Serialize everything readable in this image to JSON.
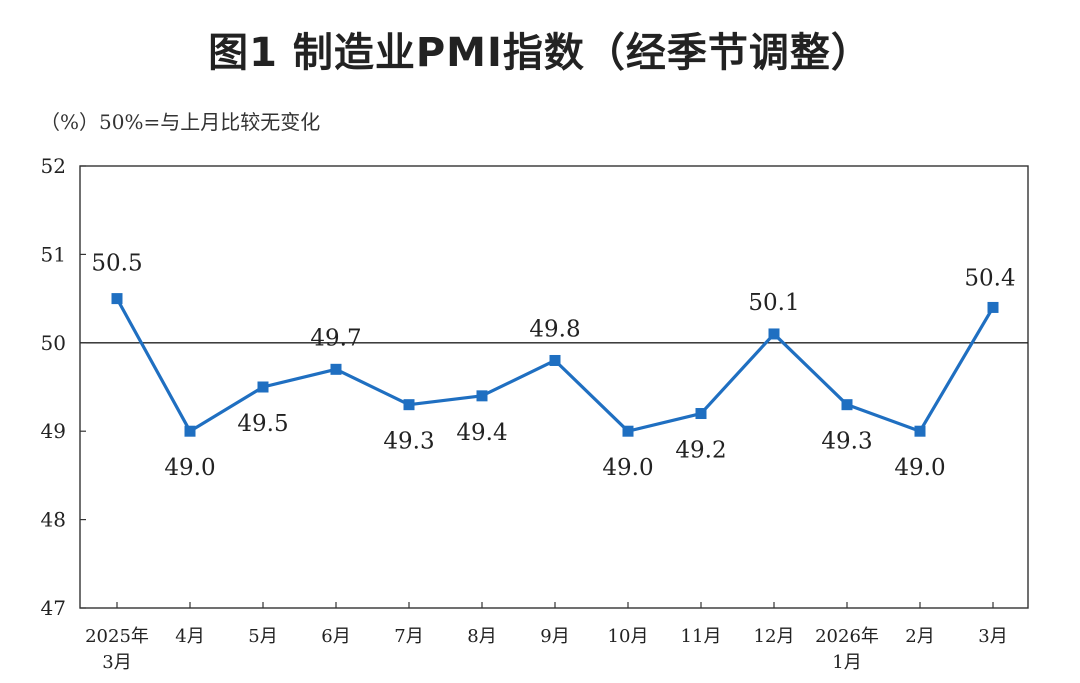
{
  "title": "图1  制造业PMI指数（经季节调整）",
  "subtitle": "（%）50%=与上月比较无变化",
  "chart_data": {
    "type": "line",
    "title": "图1  制造业PMI指数（经季节调整）",
    "ylabel": "（%）",
    "reference_line": 50,
    "reference_note": "50%=与上月比较无变化",
    "ylim": [
      47,
      52
    ],
    "yticks": [
      "47",
      "48",
      "49",
      "50",
      "51",
      "52"
    ],
    "categories": [
      [
        "2025年",
        "3月"
      ],
      [
        "4月"
      ],
      [
        "5月"
      ],
      [
        "6月"
      ],
      [
        "7月"
      ],
      [
        "8月"
      ],
      [
        "9月"
      ],
      [
        "10月"
      ],
      [
        "11月"
      ],
      [
        "12月"
      ],
      [
        "2026年",
        "1月"
      ],
      [
        "2月"
      ],
      [
        "3月"
      ]
    ],
    "values": [
      50.5,
      49.0,
      49.5,
      49.7,
      49.3,
      49.4,
      49.8,
      49.0,
      49.2,
      50.1,
      49.3,
      49.0,
      50.4
    ],
    "value_labels": [
      "50.5",
      "49.0",
      "49.5",
      "49.7",
      "49.3",
      "49.4",
      "49.8",
      "49.0",
      "49.2",
      "50.1",
      "49.3",
      "49.0",
      "50.4"
    ],
    "line_color": "#1f6fc1",
    "axis_color": "#333333"
  }
}
